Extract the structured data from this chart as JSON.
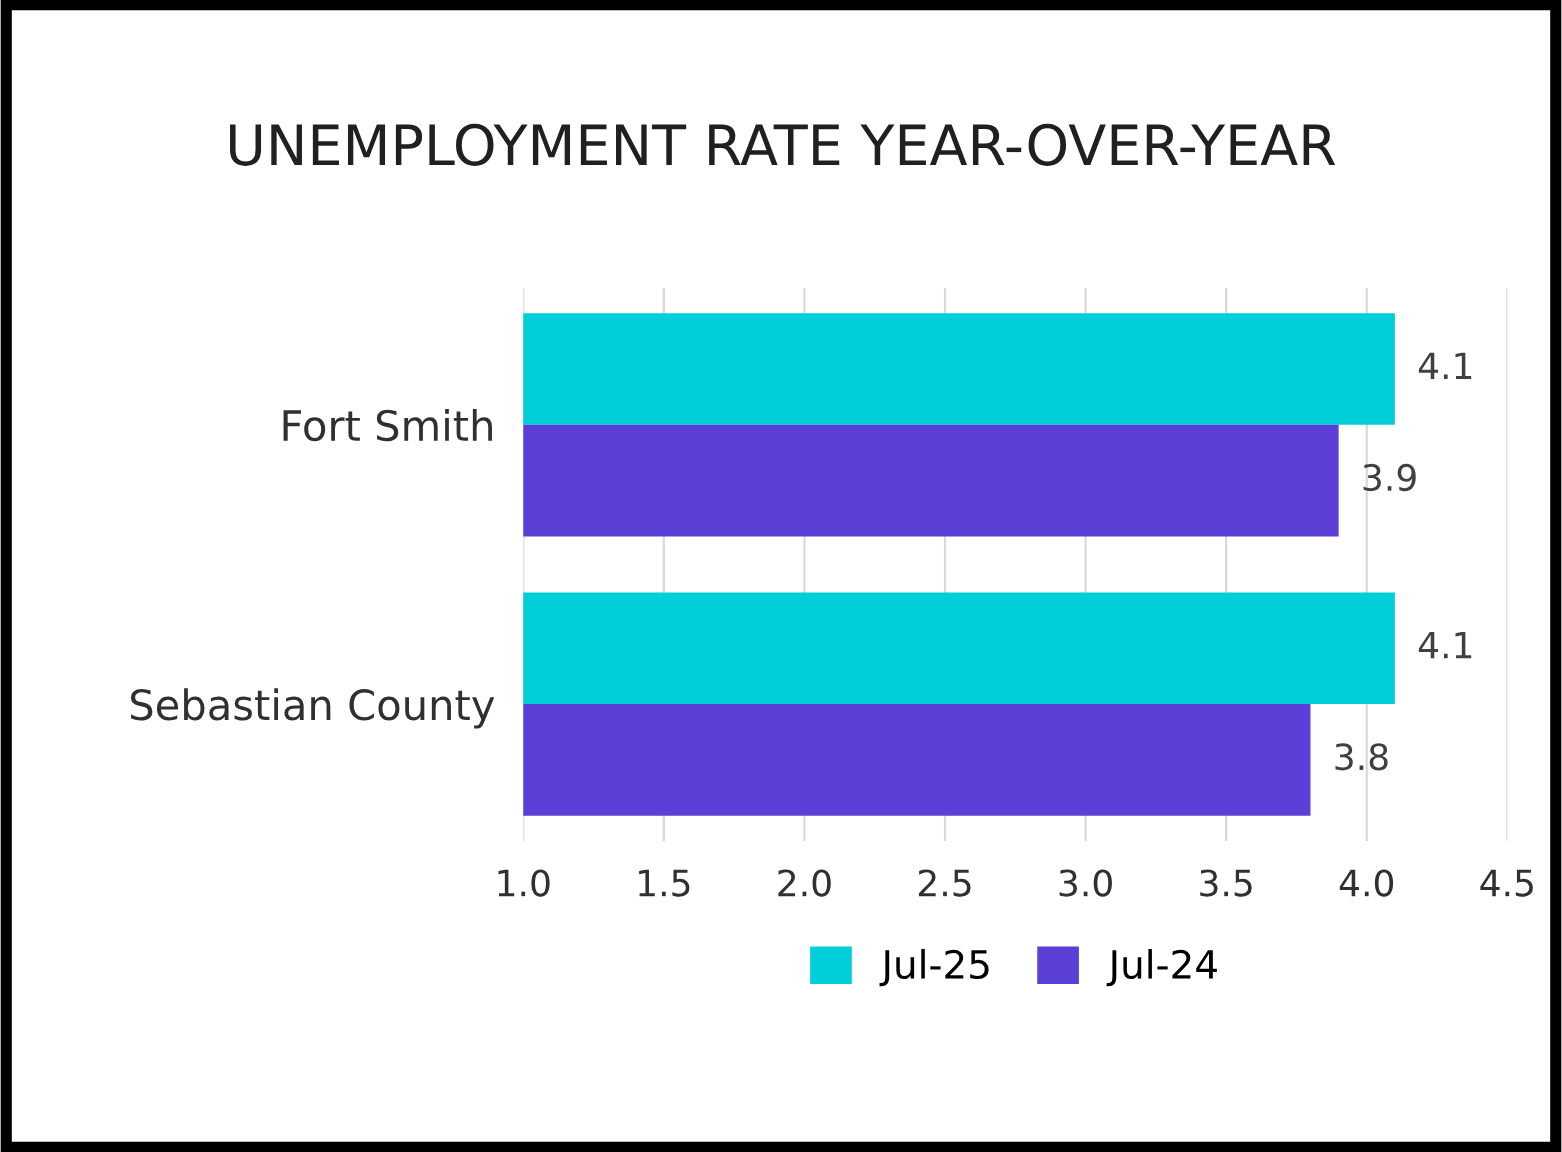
{
  "chart_data": {
    "type": "bar",
    "orientation": "horizontal",
    "title": "UNEMPLOYMENT RATE YEAR-OVER-YEAR",
    "categories": [
      "Fort Smith",
      "Sebastian County"
    ],
    "series": [
      {
        "name": "Jul-25",
        "color": "#00ced9",
        "values": [
          4.1,
          4.1
        ]
      },
      {
        "name": "Jul-24",
        "color": "#5b3fd6",
        "values": [
          3.9,
          3.8
        ]
      }
    ],
    "xlim": [
      1.0,
      4.5
    ],
    "xticks": [
      {
        "value": 1.0,
        "label": "1.0"
      },
      {
        "value": 1.5,
        "label": "1.5"
      },
      {
        "value": 2.0,
        "label": "2.0"
      },
      {
        "value": 2.5,
        "label": "2.5"
      },
      {
        "value": 3.0,
        "label": "3.0"
      },
      {
        "value": 3.5,
        "label": "3.5"
      },
      {
        "value": 4.0,
        "label": "4.0"
      },
      {
        "value": 4.5,
        "label": "4.5"
      }
    ],
    "grid": "x",
    "legend": "bottom",
    "data_labels": true
  }
}
